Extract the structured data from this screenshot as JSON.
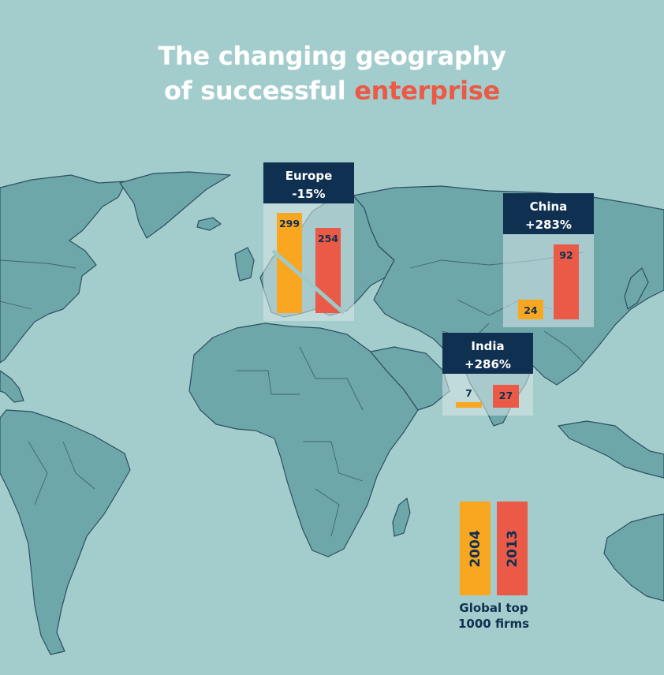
{
  "title": {
    "line1": "The changing geography",
    "line2_prefix": "of successful ",
    "line2_accent": "enterprise"
  },
  "colors": {
    "background": "#a3cdcd",
    "land": "#6ea7aa",
    "border": "#2c4f60",
    "header": "#0f3050",
    "year_2004": "#f9a620",
    "year_2013": "#ea5a47",
    "accent": "#ea5a47"
  },
  "chart_data": {
    "type": "bar",
    "categories": [
      "Europe",
      "China",
      "India"
    ],
    "series": [
      {
        "name": "2004",
        "values": [
          299,
          24,
          7
        ]
      },
      {
        "name": "2013",
        "values": [
          254,
          92,
          27
        ]
      }
    ],
    "changes": [
      "-15%",
      "+283%",
      "+286%"
    ],
    "legend": {
      "entries": [
        "2004",
        "2013"
      ],
      "caption_line1": "Global top",
      "caption_line2": "1000 firms"
    }
  }
}
